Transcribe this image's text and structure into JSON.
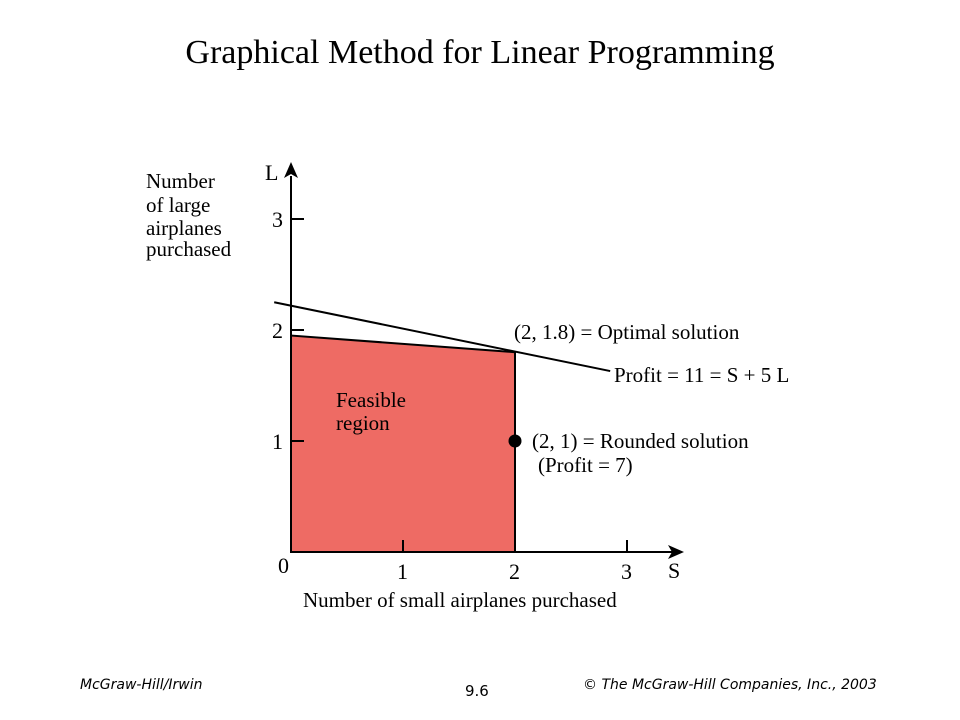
{
  "slide": {
    "title": "Graphical Method for Linear Programming"
  },
  "axes": {
    "x_symbol": "S",
    "y_symbol": "L",
    "x_label": "Number of small airplanes purchased",
    "y_label_lines": [
      "Number",
      "of large",
      "airplanes",
      "purchased"
    ],
    "origin_label": "0",
    "x_ticks": [
      "1",
      "2",
      "3"
    ],
    "y_ticks": [
      "1",
      "2",
      "3"
    ]
  },
  "region": {
    "label_lines": [
      "Feasible",
      "region"
    ],
    "color": "#ee6b64",
    "vertices": [
      [
        0,
        0
      ],
      [
        0,
        1.95
      ],
      [
        2,
        1.8
      ],
      [
        2,
        0
      ]
    ]
  },
  "profit_line": {
    "label": "Profit = 11 = S + 5 L",
    "from": [
      -0.15,
      2.25
    ],
    "to": [
      2.85,
      1.63
    ]
  },
  "points": {
    "optimal": {
      "x": 2,
      "y": 1.8,
      "label": "(2, 1.8) = Optimal solution"
    },
    "rounded": {
      "x": 2,
      "y": 1,
      "label": "(2, 1) = Rounded solution",
      "sublabel": "(Profit = 7)"
    }
  },
  "footer": {
    "left": "McGraw-Hill/Irwin",
    "center": "9.6",
    "right": "© The McGraw-Hill Companies, Inc., 2003"
  }
}
